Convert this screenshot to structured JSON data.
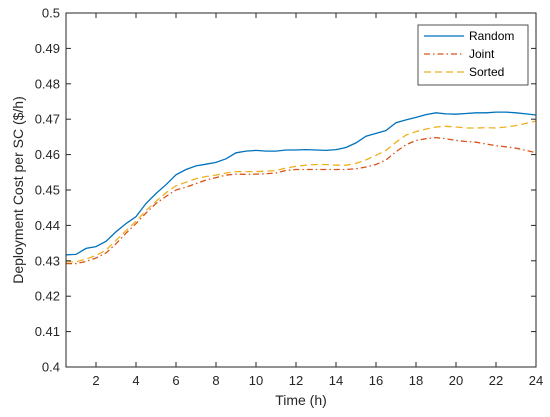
{
  "chart_data": {
    "type": "line",
    "title": "",
    "xlabel": "Time (h)",
    "ylabel": "Deployment Cost per SC ($/h)",
    "xlim": [
      0.5,
      24
    ],
    "ylim": [
      0.4,
      0.5
    ],
    "xticks": [
      2,
      4,
      6,
      8,
      10,
      12,
      14,
      16,
      18,
      20,
      22,
      24
    ],
    "yticks": [
      0.4,
      0.41,
      0.42,
      0.43,
      0.44,
      0.45,
      0.46,
      0.47,
      0.48,
      0.49,
      0.5
    ],
    "grid": false,
    "legend_position": "top-right",
    "x": [
      0.5,
      1,
      1.5,
      2,
      2.5,
      3,
      3.5,
      4,
      4.5,
      5,
      5.5,
      6,
      6.5,
      7,
      7.5,
      8,
      8.5,
      9,
      9.5,
      10,
      10.5,
      11,
      11.5,
      12,
      12.5,
      13,
      13.5,
      14,
      14.5,
      15,
      15.5,
      16,
      16.5,
      17,
      17.5,
      18,
      18.5,
      19,
      19.5,
      20,
      20.5,
      21,
      21.5,
      22,
      22.5,
      23,
      23.5,
      24
    ],
    "series": [
      {
        "name": "Random",
        "color": "#0072BD",
        "style": "solid",
        "values": [
          0.4317,
          0.4318,
          0.4335,
          0.434,
          0.4355,
          0.4382,
          0.4405,
          0.4425,
          0.4462,
          0.449,
          0.4515,
          0.4543,
          0.4558,
          0.4568,
          0.4573,
          0.4578,
          0.4588,
          0.4605,
          0.461,
          0.4612,
          0.461,
          0.461,
          0.4613,
          0.4613,
          0.4614,
          0.4613,
          0.4612,
          0.4614,
          0.462,
          0.4633,
          0.4652,
          0.466,
          0.4668,
          0.469,
          0.4698,
          0.4705,
          0.4713,
          0.4718,
          0.4715,
          0.4714,
          0.4716,
          0.4718,
          0.4718,
          0.472,
          0.472,
          0.4718,
          0.4715,
          0.4712
        ]
      },
      {
        "name": "Joint",
        "color": "#D95319",
        "style": "dashdot",
        "values": [
          0.4292,
          0.4292,
          0.4298,
          0.4308,
          0.4322,
          0.4348,
          0.4378,
          0.4405,
          0.4435,
          0.4462,
          0.4482,
          0.45,
          0.4508,
          0.4518,
          0.4528,
          0.4535,
          0.4542,
          0.4545,
          0.4544,
          0.4545,
          0.4546,
          0.4548,
          0.4555,
          0.4558,
          0.4558,
          0.4558,
          0.4558,
          0.4558,
          0.4558,
          0.456,
          0.4565,
          0.4572,
          0.4585,
          0.4608,
          0.4628,
          0.464,
          0.4645,
          0.4648,
          0.4645,
          0.464,
          0.4637,
          0.4635,
          0.463,
          0.4625,
          0.4622,
          0.4618,
          0.4612,
          0.4605
        ]
      },
      {
        "name": "Sorted",
        "color": "#EDB120",
        "style": "dashed",
        "values": [
          0.4297,
          0.4297,
          0.4305,
          0.4315,
          0.433,
          0.4358,
          0.4385,
          0.4412,
          0.4442,
          0.4468,
          0.4492,
          0.4512,
          0.4522,
          0.4532,
          0.4538,
          0.4542,
          0.4548,
          0.4552,
          0.4552,
          0.4552,
          0.4553,
          0.4555,
          0.4562,
          0.4567,
          0.457,
          0.4572,
          0.4572,
          0.457,
          0.457,
          0.4575,
          0.4585,
          0.4598,
          0.4612,
          0.4635,
          0.4655,
          0.4665,
          0.4672,
          0.4678,
          0.468,
          0.4678,
          0.4675,
          0.4675,
          0.4676,
          0.4675,
          0.4678,
          0.4682,
          0.4688,
          0.4695
        ]
      }
    ]
  }
}
